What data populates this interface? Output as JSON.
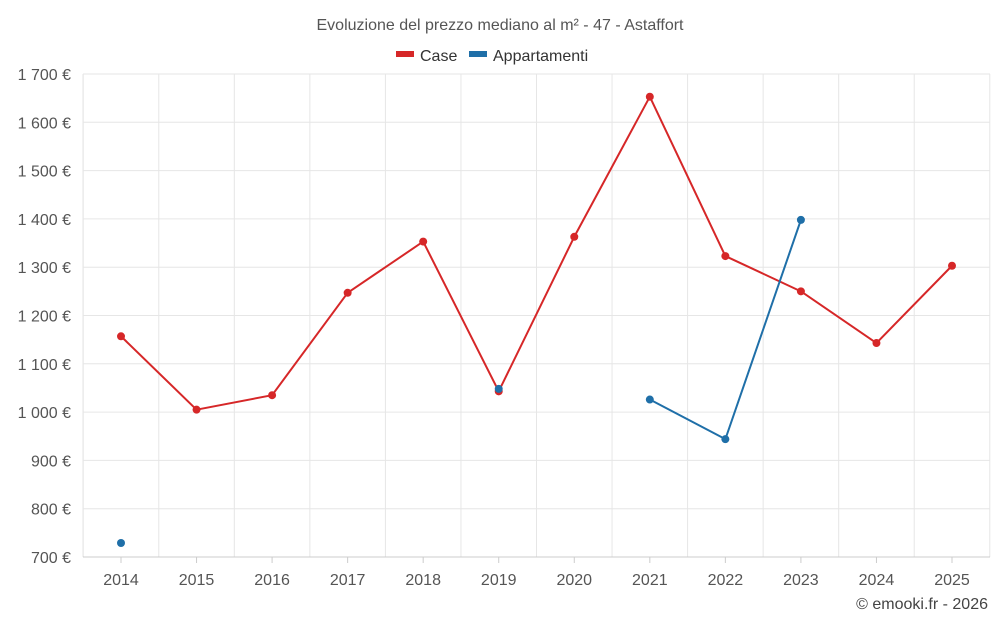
{
  "chart_data": {
    "type": "line",
    "title": "Evoluzione del prezzo mediano al m² - 47 - Astaffort",
    "xlabel": "",
    "ylabel": "",
    "categories": [
      "2014",
      "2015",
      "2016",
      "2017",
      "2018",
      "2019",
      "2020",
      "2021",
      "2022",
      "2023",
      "2024",
      "2025"
    ],
    "ylim": [
      700,
      1700
    ],
    "yticks": [
      700,
      800,
      900,
      1000,
      1100,
      1200,
      1300,
      1400,
      1500,
      1600,
      1700
    ],
    "ytick_labels": [
      "700 €",
      "800 €",
      "900 €",
      "1 000 €",
      "1 100 €",
      "1 200 €",
      "1 300 €",
      "1 400 €",
      "1 500 €",
      "1 600 €",
      "1 700 €"
    ],
    "grid": true,
    "legend_position": "top-center",
    "series": [
      {
        "name": "Case",
        "color": "#d62728",
        "values": [
          1157,
          1005,
          1035,
          1247,
          1353,
          1043,
          1363,
          1653,
          1323,
          1250,
          1143,
          1303
        ]
      },
      {
        "name": "Appartamenti",
        "color": "#1f6fa8",
        "values": [
          729,
          null,
          null,
          null,
          null,
          1048,
          null,
          1026,
          944,
          1398,
          null,
          null
        ]
      }
    ]
  },
  "credit": "© emooki.fr - 2026"
}
